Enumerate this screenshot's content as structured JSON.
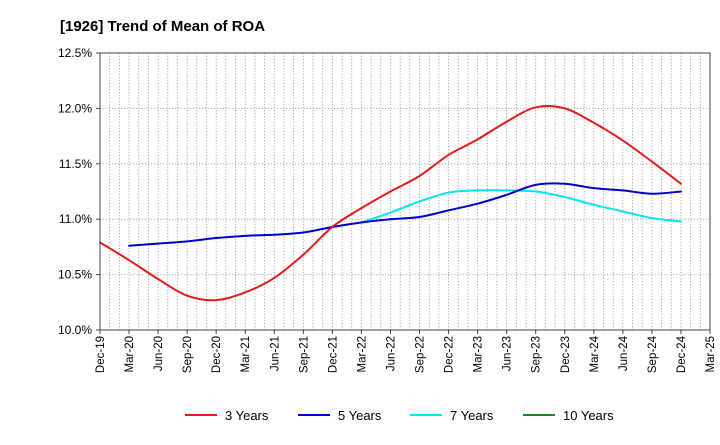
{
  "chart_data": {
    "type": "line",
    "title": "[1926]  Trend of Mean of ROA",
    "xlabel": "",
    "ylabel": "",
    "ylim": [
      10.0,
      12.5
    ],
    "y_ticks": [
      "10.0%",
      "10.5%",
      "11.0%",
      "11.5%",
      "12.0%",
      "12.5%"
    ],
    "y_tick_values": [
      10.0,
      10.5,
      11.0,
      11.5,
      12.0,
      12.5
    ],
    "x_categories": [
      "Dec-19",
      "Mar-20",
      "Jun-20",
      "Sep-20",
      "Dec-20",
      "Mar-21",
      "Jun-21",
      "Sep-21",
      "Dec-21",
      "Mar-22",
      "Jun-22",
      "Sep-22",
      "Dec-22",
      "Mar-23",
      "Jun-23",
      "Sep-23",
      "Dec-23",
      "Mar-24",
      "Jun-24",
      "Sep-24",
      "Dec-24",
      "Mar-25"
    ],
    "grid": true,
    "legend_position": "bottom",
    "series": [
      {
        "name": "3 Years",
        "color": "#e41a1c",
        "start_index": 0,
        "values": [
          10.79,
          10.63,
          10.46,
          10.31,
          10.27,
          10.34,
          10.47,
          10.68,
          10.93,
          11.1,
          11.25,
          11.39,
          11.58,
          11.72,
          11.88,
          12.01,
          12.0,
          11.87,
          11.71,
          11.52,
          11.32
        ]
      },
      {
        "name": "5 Years",
        "color": "#0000cc",
        "start_index": 1,
        "values": [
          10.76,
          10.78,
          10.8,
          10.83,
          10.85,
          10.86,
          10.88,
          10.93,
          10.97,
          11.0,
          11.02,
          11.08,
          11.14,
          11.22,
          11.31,
          11.32,
          11.28,
          11.26,
          11.23,
          11.25
        ]
      },
      {
        "name": "7 Years",
        "color": "#00e5ee",
        "start_index": 9,
        "values": [
          10.97,
          11.06,
          11.16,
          11.24,
          11.26,
          11.26,
          11.25,
          11.2,
          11.13,
          11.07,
          11.01,
          10.98
        ]
      },
      {
        "name": "10 Years",
        "color": "#1a8a1a",
        "start_index": 0,
        "values": []
      }
    ]
  }
}
